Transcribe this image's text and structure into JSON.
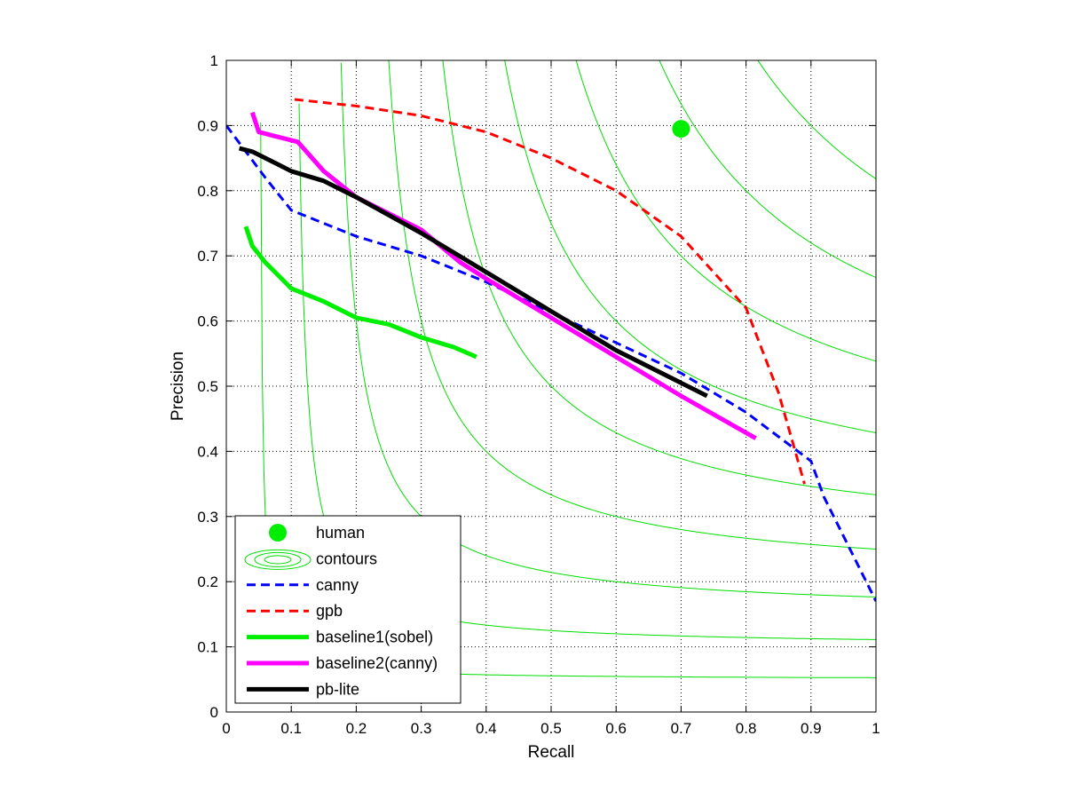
{
  "chart_data": {
    "type": "line",
    "xlabel": "Recall",
    "ylabel": "Precision",
    "xlim": [
      0,
      1
    ],
    "ylim": [
      0,
      1
    ],
    "xticks": [
      "0",
      "0.1",
      "0.2",
      "0.3",
      "0.4",
      "0.5",
      "0.6",
      "0.7",
      "0.8",
      "0.9",
      "1"
    ],
    "yticks": [
      "0",
      "0.1",
      "0.2",
      "0.3",
      "0.4",
      "0.5",
      "0.6",
      "0.7",
      "0.8",
      "0.9",
      "1"
    ],
    "grid": true,
    "legend_placement": "bottom-left",
    "contour_levels": [
      0.1,
      0.2,
      0.3,
      0.4,
      0.5,
      0.6,
      0.7,
      0.8,
      0.9
    ],
    "human_point": {
      "name": "human",
      "x": 0.7,
      "y": 0.895,
      "color": "#00ee00"
    },
    "contours": {
      "name": "contours",
      "color": "#00dd00"
    },
    "series": [
      {
        "name": "canny",
        "color": "#0000ff",
        "style": "dashed",
        "x": [
          0.0,
          0.03,
          0.06,
          0.1,
          0.2,
          0.3,
          0.4,
          0.55,
          0.7,
          0.8,
          0.88,
          0.9,
          0.92,
          0.95,
          1.0
        ],
        "y": [
          0.9,
          0.86,
          0.82,
          0.77,
          0.73,
          0.7,
          0.66,
          0.59,
          0.52,
          0.46,
          0.4,
          0.385,
          0.33,
          0.27,
          0.17
        ]
      },
      {
        "name": "gpb",
        "color": "#ff0000",
        "style": "dashed",
        "x": [
          0.105,
          0.2,
          0.3,
          0.4,
          0.5,
          0.6,
          0.7,
          0.8,
          0.85,
          0.89
        ],
        "y": [
          0.94,
          0.93,
          0.915,
          0.89,
          0.85,
          0.8,
          0.73,
          0.62,
          0.49,
          0.35
        ]
      },
      {
        "name": "baseline1(sobel)",
        "color": "#00ee00",
        "style": "solid",
        "x": [
          0.03,
          0.04,
          0.06,
          0.1,
          0.15,
          0.2,
          0.25,
          0.3,
          0.35,
          0.385
        ],
        "y": [
          0.745,
          0.715,
          0.69,
          0.65,
          0.63,
          0.605,
          0.595,
          0.575,
          0.56,
          0.545
        ]
      },
      {
        "name": "baseline2(canny)",
        "color": "#ff00ff",
        "style": "solid",
        "x": [
          0.04,
          0.05,
          0.07,
          0.11,
          0.15,
          0.2,
          0.3,
          0.36,
          0.4,
          0.5,
          0.6,
          0.7,
          0.815
        ],
        "y": [
          0.92,
          0.89,
          0.885,
          0.875,
          0.83,
          0.79,
          0.74,
          0.69,
          0.665,
          0.605,
          0.545,
          0.485,
          0.42
        ]
      },
      {
        "name": "pb-lite",
        "color": "#000000",
        "style": "solid",
        "x": [
          0.02,
          0.04,
          0.08,
          0.1,
          0.15,
          0.2,
          0.3,
          0.4,
          0.5,
          0.6,
          0.7,
          0.74
        ],
        "y": [
          0.865,
          0.86,
          0.84,
          0.83,
          0.815,
          0.79,
          0.735,
          0.675,
          0.615,
          0.555,
          0.505,
          0.485
        ]
      }
    ]
  }
}
